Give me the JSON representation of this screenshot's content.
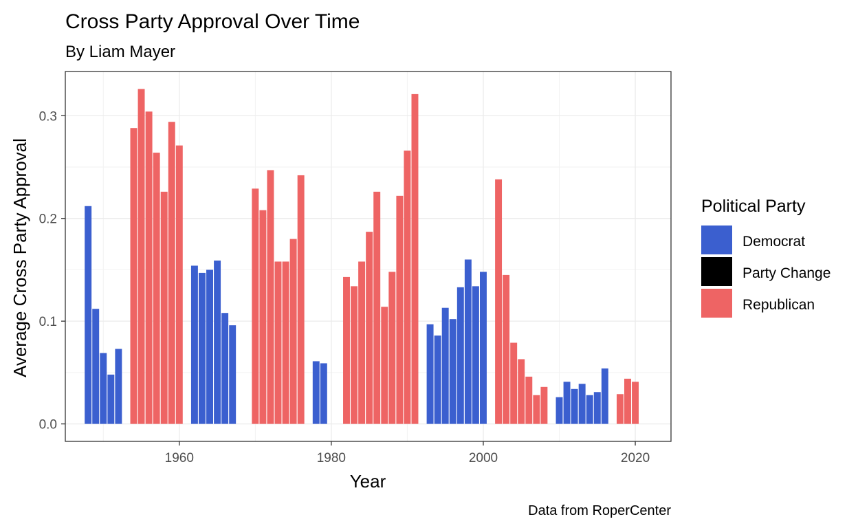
{
  "chart_data": {
    "type": "bar",
    "title": "Cross Party Approval Over Time",
    "subtitle": "By Liam Mayer",
    "xlabel": "Year",
    "ylabel": "Average Cross Party Approval",
    "caption": "Data from RoperCenter",
    "xlim": [
      1945,
      2024.7
    ],
    "ylim": [
      -0.017,
      0.343
    ],
    "x_ticks": [
      1960,
      1980,
      2000,
      2020
    ],
    "y_ticks": [
      0.0,
      0.1,
      0.2,
      0.3
    ],
    "x_tick_labels": [
      "1960",
      "1980",
      "2000",
      "2020"
    ],
    "y_tick_labels": [
      "0.0",
      "0.1",
      "0.2",
      "0.3"
    ],
    "grid": true,
    "legend": {
      "title": "Political Party",
      "position": "right",
      "entries": [
        {
          "label": "Democrat",
          "color": "#3b5fcf"
        },
        {
          "label": "Party Change",
          "color": "#000000"
        },
        {
          "label": "Republican",
          "color": "#ee6464"
        }
      ]
    },
    "bars": [
      {
        "x": 1948,
        "y": 0.212,
        "party": "Democrat"
      },
      {
        "x": 1949,
        "y": 0.112,
        "party": "Democrat"
      },
      {
        "x": 1950,
        "y": 0.069,
        "party": "Democrat"
      },
      {
        "x": 1951,
        "y": 0.048,
        "party": "Democrat"
      },
      {
        "x": 1952,
        "y": 0.073,
        "party": "Democrat"
      },
      {
        "x": 1954,
        "y": 0.288,
        "party": "Republican"
      },
      {
        "x": 1955,
        "y": 0.326,
        "party": "Republican"
      },
      {
        "x": 1956,
        "y": 0.304,
        "party": "Republican"
      },
      {
        "x": 1957,
        "y": 0.264,
        "party": "Republican"
      },
      {
        "x": 1958,
        "y": 0.226,
        "party": "Republican"
      },
      {
        "x": 1959,
        "y": 0.294,
        "party": "Republican"
      },
      {
        "x": 1960,
        "y": 0.271,
        "party": "Republican"
      },
      {
        "x": 1962,
        "y": 0.154,
        "party": "Democrat"
      },
      {
        "x": 1963,
        "y": 0.147,
        "party": "Democrat"
      },
      {
        "x": 1964,
        "y": 0.15,
        "party": "Democrat"
      },
      {
        "x": 1965,
        "y": 0.159,
        "party": "Democrat"
      },
      {
        "x": 1966,
        "y": 0.108,
        "party": "Democrat"
      },
      {
        "x": 1967,
        "y": 0.096,
        "party": "Democrat"
      },
      {
        "x": 1970,
        "y": 0.229,
        "party": "Republican"
      },
      {
        "x": 1971,
        "y": 0.208,
        "party": "Republican"
      },
      {
        "x": 1972,
        "y": 0.247,
        "party": "Republican"
      },
      {
        "x": 1973,
        "y": 0.158,
        "party": "Republican"
      },
      {
        "x": 1974,
        "y": 0.158,
        "party": "Republican"
      },
      {
        "x": 1975,
        "y": 0.18,
        "party": "Republican"
      },
      {
        "x": 1976,
        "y": 0.242,
        "party": "Republican"
      },
      {
        "x": 1978,
        "y": 0.061,
        "party": "Democrat"
      },
      {
        "x": 1979,
        "y": 0.059,
        "party": "Democrat"
      },
      {
        "x": 1982,
        "y": 0.143,
        "party": "Republican"
      },
      {
        "x": 1983,
        "y": 0.134,
        "party": "Republican"
      },
      {
        "x": 1984,
        "y": 0.158,
        "party": "Republican"
      },
      {
        "x": 1985,
        "y": 0.187,
        "party": "Republican"
      },
      {
        "x": 1986,
        "y": 0.226,
        "party": "Republican"
      },
      {
        "x": 1987,
        "y": 0.114,
        "party": "Republican"
      },
      {
        "x": 1988,
        "y": 0.148,
        "party": "Republican"
      },
      {
        "x": 1989,
        "y": 0.222,
        "party": "Republican"
      },
      {
        "x": 1990,
        "y": 0.266,
        "party": "Republican"
      },
      {
        "x": 1991,
        "y": 0.321,
        "party": "Republican"
      },
      {
        "x": 1993,
        "y": 0.097,
        "party": "Democrat"
      },
      {
        "x": 1994,
        "y": 0.086,
        "party": "Democrat"
      },
      {
        "x": 1995,
        "y": 0.113,
        "party": "Democrat"
      },
      {
        "x": 1996,
        "y": 0.102,
        "party": "Democrat"
      },
      {
        "x": 1997,
        "y": 0.133,
        "party": "Democrat"
      },
      {
        "x": 1998,
        "y": 0.16,
        "party": "Democrat"
      },
      {
        "x": 1999,
        "y": 0.134,
        "party": "Democrat"
      },
      {
        "x": 2000,
        "y": 0.148,
        "party": "Democrat"
      },
      {
        "x": 2002,
        "y": 0.238,
        "party": "Republican"
      },
      {
        "x": 2003,
        "y": 0.145,
        "party": "Republican"
      },
      {
        "x": 2004,
        "y": 0.079,
        "party": "Republican"
      },
      {
        "x": 2005,
        "y": 0.063,
        "party": "Republican"
      },
      {
        "x": 2006,
        "y": 0.046,
        "party": "Republican"
      },
      {
        "x": 2007,
        "y": 0.028,
        "party": "Republican"
      },
      {
        "x": 2008,
        "y": 0.036,
        "party": "Republican"
      },
      {
        "x": 2010,
        "y": 0.026,
        "party": "Democrat"
      },
      {
        "x": 2011,
        "y": 0.041,
        "party": "Democrat"
      },
      {
        "x": 2012,
        "y": 0.034,
        "party": "Democrat"
      },
      {
        "x": 2013,
        "y": 0.039,
        "party": "Democrat"
      },
      {
        "x": 2014,
        "y": 0.028,
        "party": "Democrat"
      },
      {
        "x": 2015,
        "y": 0.031,
        "party": "Democrat"
      },
      {
        "x": 2016,
        "y": 0.054,
        "party": "Democrat"
      },
      {
        "x": 2018,
        "y": 0.029,
        "party": "Republican"
      },
      {
        "x": 2019,
        "y": 0.044,
        "party": "Republican"
      },
      {
        "x": 2020,
        "y": 0.041,
        "party": "Republican"
      }
    ]
  }
}
